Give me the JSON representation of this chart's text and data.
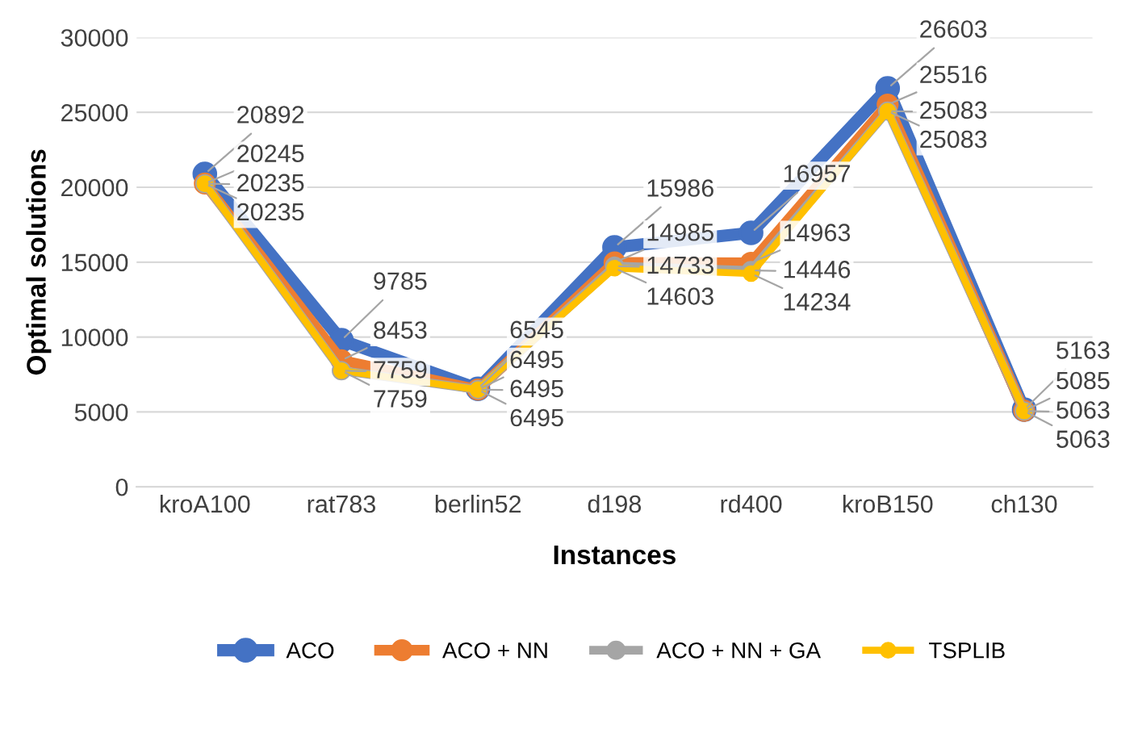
{
  "chart_data": {
    "type": "line",
    "xlabel": "Instances",
    "ylabel": "Optimal solutions",
    "categories": [
      "kroA100",
      "rat783",
      "berlin52",
      "d198",
      "rd400",
      "kroB150",
      "ch130"
    ],
    "series": [
      {
        "name": "ACO",
        "color": "#4472c4",
        "values": [
          20892,
          9785,
          6545,
          15986,
          16957,
          26603,
          5163
        ]
      },
      {
        "name": "ACO + NN",
        "color": "#ed7d31",
        "values": [
          20245,
          8453,
          6495,
          14985,
          14963,
          25516,
          5085
        ]
      },
      {
        "name": "ACO + NN + GA",
        "color": "#a5a5a5",
        "values": [
          20235,
          7759,
          6495,
          14733,
          14446,
          25083,
          5063
        ]
      },
      {
        "name": "TSPLIB",
        "color": "#ffc000",
        "values": [
          20235,
          7759,
          6495,
          14603,
          14234,
          25083,
          5063
        ]
      }
    ],
    "ylim": [
      0,
      30000
    ],
    "yticks": [
      0,
      5000,
      10000,
      15000,
      20000,
      25000,
      30000
    ],
    "grid": "y",
    "legend": "bottom",
    "marker": "circle",
    "line_style": "solid",
    "data_labels": true
  }
}
